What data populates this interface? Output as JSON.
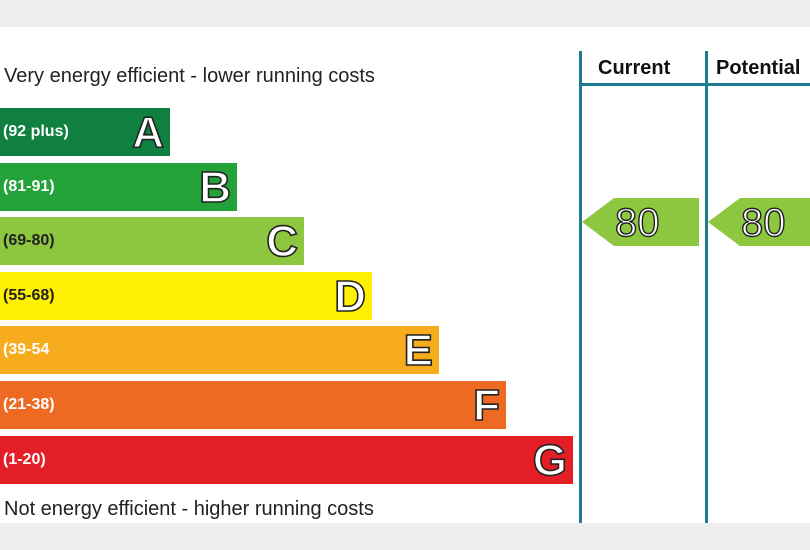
{
  "chart_data": {
    "type": "bar",
    "top_caption": "Very energy efficient - lower running costs",
    "bottom_caption": "Not energy efficient - higher running costs",
    "bands": [
      {
        "letter": "A",
        "range": "(92 plus)",
        "color": "#0f8040"
      },
      {
        "letter": "B",
        "range": "(81-91)",
        "color": "#23a23a"
      },
      {
        "letter": "C",
        "range": "(69-80)",
        "color": "#8dc63f"
      },
      {
        "letter": "D",
        "range": "(55-68)",
        "color": "#ffef00"
      },
      {
        "letter": "E",
        "range": "(39-54",
        "color": "#f6ac1d"
      },
      {
        "letter": "F",
        "range": "(21-38)",
        "color": "#ee6a23"
      },
      {
        "letter": "G",
        "range": "(1-20)",
        "color": "#e41e26"
      }
    ],
    "columns": [
      {
        "header": "Current",
        "value": 80,
        "band": "C"
      },
      {
        "header": "Potential",
        "value": 80,
        "band": "C"
      }
    ],
    "rating_color": "#8dc63f",
    "divider_color": "#1e7c8f"
  }
}
